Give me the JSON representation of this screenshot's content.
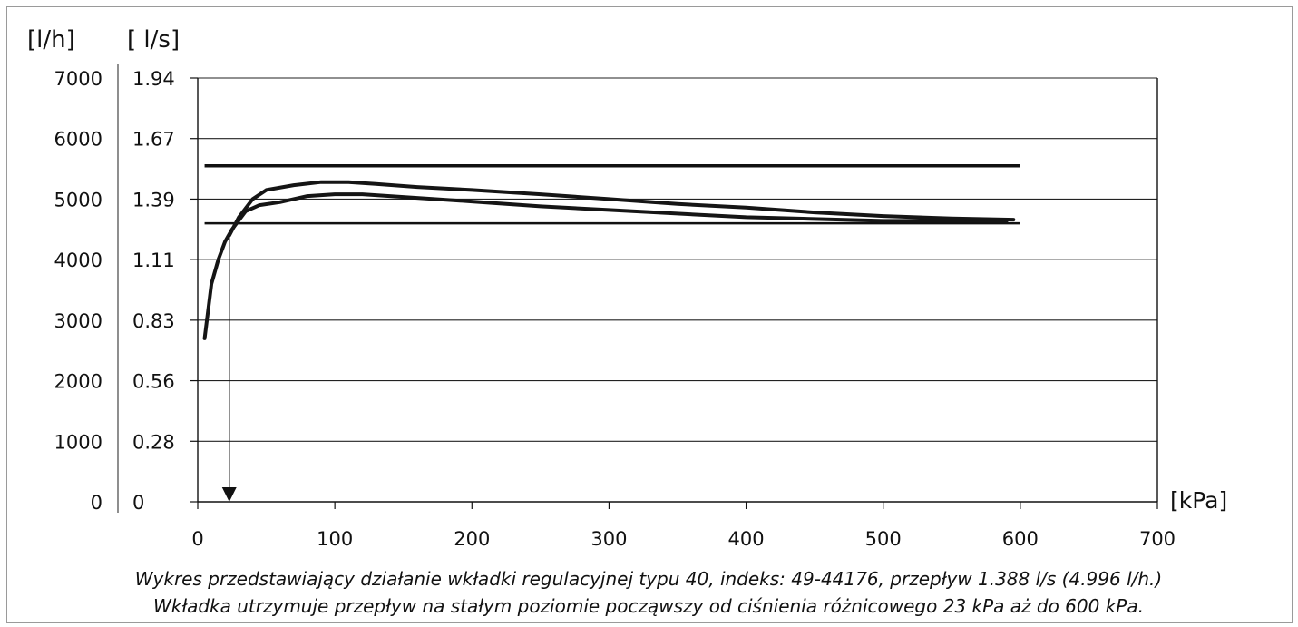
{
  "chart_data": {
    "type": "line",
    "title": "",
    "y_units": [
      "[l/h]",
      "[ l/s]"
    ],
    "x_unit": "[kPa]",
    "xlim": [
      0,
      700
    ],
    "ylim": [
      0,
      7000
    ],
    "x_ticks": [
      "0",
      "100",
      "200",
      "300",
      "400",
      "500",
      "600",
      "700"
    ],
    "y_ticks_lh": [
      "0",
      "1000",
      "2000",
      "3000",
      "4000",
      "5000",
      "6000",
      "7000"
    ],
    "y_ticks_ls": [
      "0",
      "0.28",
      "0.56",
      "0.83",
      "1.11",
      "1.39",
      "1.67",
      "1.94"
    ],
    "grid": true,
    "reference_lines": [
      {
        "y": 5550,
        "x_range": [
          5,
          600
        ]
      },
      {
        "y": 4600,
        "x_range": [
          5,
          600
        ]
      }
    ],
    "series": [
      {
        "values": [
          [
            5,
            2700
          ],
          [
            10,
            3600
          ],
          [
            15,
            4000
          ],
          [
            20,
            4300
          ],
          [
            25,
            4500
          ],
          [
            35,
            4800
          ],
          [
            45,
            4900
          ],
          [
            60,
            4950
          ],
          [
            80,
            5050
          ],
          [
            100,
            5080
          ],
          [
            120,
            5080
          ],
          [
            160,
            5020
          ],
          [
            200,
            4960
          ],
          [
            250,
            4880
          ],
          [
            300,
            4820
          ],
          [
            400,
            4700
          ],
          [
            500,
            4640
          ],
          [
            590,
            4640
          ]
        ]
      },
      {
        "values": [
          [
            23,
            4400
          ],
          [
            30,
            4700
          ],
          [
            40,
            5000
          ],
          [
            50,
            5150
          ],
          [
            70,
            5230
          ],
          [
            90,
            5280
          ],
          [
            110,
            5280
          ],
          [
            130,
            5250
          ],
          [
            160,
            5200
          ],
          [
            200,
            5150
          ],
          [
            250,
            5080
          ],
          [
            300,
            5000
          ],
          [
            350,
            4920
          ],
          [
            400,
            4860
          ],
          [
            450,
            4780
          ],
          [
            500,
            4720
          ],
          [
            550,
            4680
          ],
          [
            595,
            4660
          ]
        ]
      }
    ],
    "marker": {
      "x": 23,
      "label_arrow": "down"
    },
    "caption": [
      "Wykres przedstawiający działanie wkładki regulacyjnej typu 40,  indeks: 49-44176, przepływ 1.388 l/s (4.996 l/h.)",
      "Wkładka utrzymuje przepływ na stałym poziomie począwszy od ciśnienia różnicowego 23 kPa aż do 600 kPa."
    ]
  }
}
